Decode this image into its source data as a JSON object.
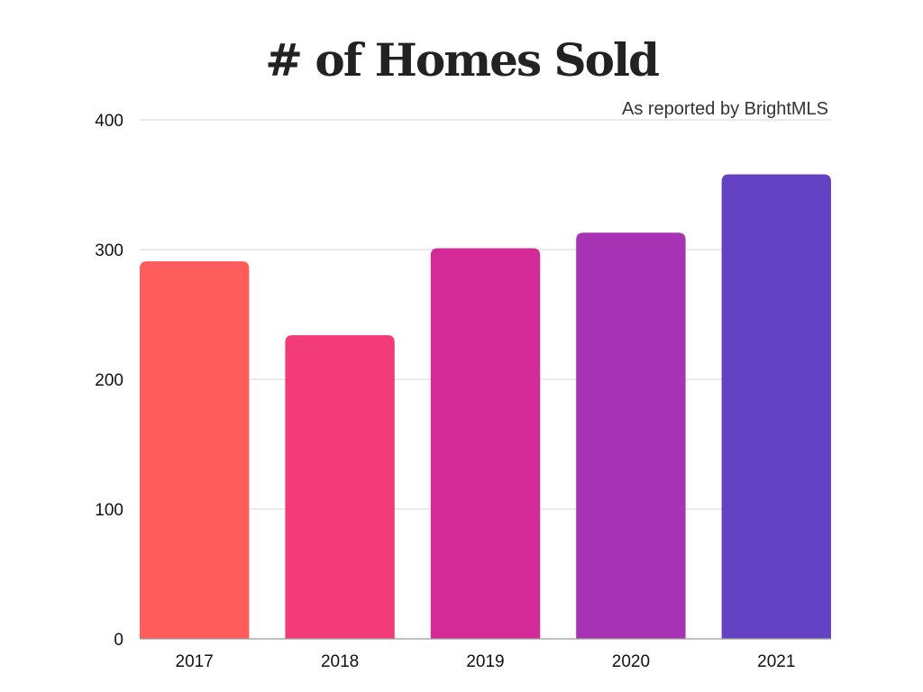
{
  "chart_data": {
    "type": "bar",
    "title": "# of Homes Sold",
    "subtitle": "As reported by BrightMLS",
    "xlabel": "",
    "ylabel": "",
    "categories": [
      "2017",
      "2018",
      "2019",
      "2020",
      "2021"
    ],
    "values": [
      291,
      234,
      301,
      313,
      358
    ],
    "bar_colors": [
      "#ff5c5c",
      "#f23b78",
      "#d42a98",
      "#a832b4",
      "#6342c4"
    ],
    "ylim": [
      0,
      400
    ],
    "yticks": [
      0,
      100,
      200,
      300,
      400
    ],
    "grid": true,
    "legend": "none"
  }
}
